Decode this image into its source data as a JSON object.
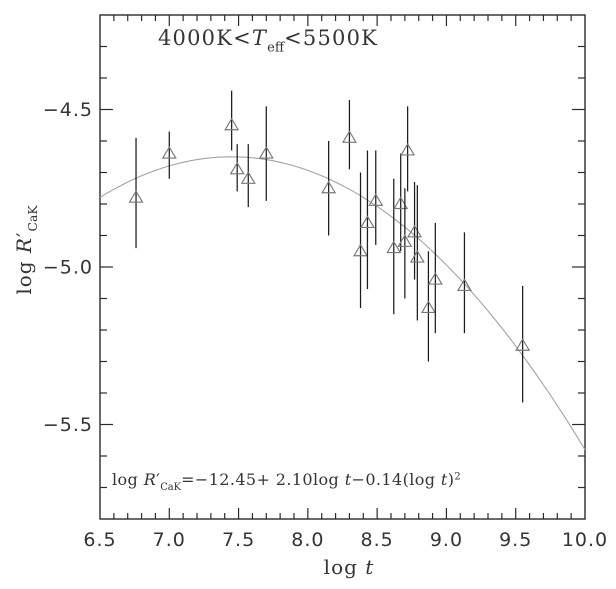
{
  "chart_data": {
    "type": "scatter",
    "xlabel": "log t",
    "ylabel": "log R'_CaK",
    "annotation": "4000K<T_eff<5500K",
    "fit_label": "log R'_CaK=-12.45+ 2.10log t-0.14(log t)^2",
    "fit_coefficients": {
      "c0": -12.45,
      "c1": 2.1,
      "c2": -0.14
    },
    "xlim": [
      6.5,
      10.0
    ],
    "ylim": [
      -5.8,
      -4.2
    ],
    "x_major_ticks": [
      6.5,
      7.0,
      7.5,
      8.0,
      8.5,
      9.0,
      9.5,
      10.0
    ],
    "x_tick_labels": [
      "6.5",
      "7.0",
      "7.5",
      "8.0",
      "8.5",
      "9.0",
      "9.5",
      "10.0"
    ],
    "y_major_ticks": [
      -4.5,
      -5.0,
      -5.5
    ],
    "y_tick_labels": [
      "−4.5",
      "−5.0",
      "−5.5"
    ],
    "minor_tick_step": 0.1,
    "grid": false,
    "legend": "none",
    "marker": "open-triangle-up",
    "curve": {
      "vertex_x": 7.45,
      "vertex_y": -4.65,
      "a": -0.143,
      "x_start": 6.5,
      "x_end": 10.0
    },
    "points": [
      {
        "x": 6.76,
        "y": -4.78,
        "ylo": -4.94,
        "yhi": -4.59
      },
      {
        "x": 7.0,
        "y": -4.64,
        "ylo": -4.72,
        "yhi": -4.57
      },
      {
        "x": 7.45,
        "y": -4.55,
        "ylo": -4.63,
        "yhi": -4.44
      },
      {
        "x": 7.49,
        "y": -4.69,
        "ylo": -4.76,
        "yhi": -4.61
      },
      {
        "x": 7.57,
        "y": -4.72,
        "ylo": -4.81,
        "yhi": -4.61
      },
      {
        "x": 7.7,
        "y": -4.64,
        "ylo": -4.79,
        "yhi": -4.49
      },
      {
        "x": 8.15,
        "y": -4.75,
        "ylo": -4.9,
        "yhi": -4.6
      },
      {
        "x": 8.3,
        "y": -4.59,
        "ylo": -4.69,
        "yhi": -4.47
      },
      {
        "x": 8.38,
        "y": -4.95,
        "ylo": -5.13,
        "yhi": -4.7
      },
      {
        "x": 8.43,
        "y": -4.86,
        "ylo": -5.07,
        "yhi": -4.63
      },
      {
        "x": 8.49,
        "y": -4.79,
        "ylo": -4.93,
        "yhi": -4.63
      },
      {
        "x": 8.62,
        "y": -4.94,
        "ylo": -5.15,
        "yhi": -4.72
      },
      {
        "x": 8.67,
        "y": -4.8,
        "ylo": -4.95,
        "yhi": -4.64
      },
      {
        "x": 8.7,
        "y": -4.92,
        "ylo": -5.1,
        "yhi": -4.75
      },
      {
        "x": 8.72,
        "y": -4.63,
        "ylo": -4.76,
        "yhi": -4.49
      },
      {
        "x": 8.77,
        "y": -4.89,
        "ylo": -5.04,
        "yhi": -4.73
      },
      {
        "x": 8.79,
        "y": -4.97,
        "ylo": -5.17,
        "yhi": -4.74
      },
      {
        "x": 8.87,
        "y": -5.13,
        "ylo": -5.3,
        "yhi": -4.95
      },
      {
        "x": 8.92,
        "y": -5.04,
        "ylo": -5.21,
        "yhi": -4.86
      },
      {
        "x": 9.13,
        "y": -5.06,
        "ylo": -5.21,
        "yhi": -4.89
      },
      {
        "x": 9.55,
        "y": -5.25,
        "ylo": -5.43,
        "yhi": -5.06
      }
    ],
    "colors": {
      "background": "#ffffff",
      "frame": "#2b2b2b",
      "text": "#343434",
      "error_bar": "#1c1c1c",
      "marker": "#787878",
      "curve": "#a3a3a3"
    },
    "annotation_parts": {
      "p1": "4000K<",
      "T": "T",
      "sub": "eff",
      "p2": "<5500K"
    },
    "equation_parts": {
      "p1": "log ",
      "R": "R",
      "prime": "′",
      "sub": "CaK",
      "p2": "=−12.45+ 2.10log ",
      "t1": "t",
      "p3": "−0.14(log ",
      "t2": "t",
      "p4": ")",
      "sup": "2"
    },
    "ylabel_parts": {
      "p1": "log ",
      "R": "R",
      "prime": "′",
      "sub": "CaK"
    },
    "xlabel_parts": {
      "p1": "log ",
      "t": "t"
    }
  }
}
